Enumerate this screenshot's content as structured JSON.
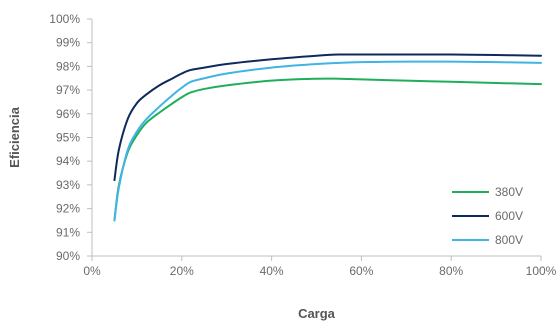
{
  "chart_data": {
    "type": "line",
    "xlabel": "Carga",
    "ylabel": "Eficiencia",
    "xlim": [
      0,
      100
    ],
    "ylim": [
      90,
      100
    ],
    "x_ticks": [
      "0%",
      "20%",
      "40%",
      "60%",
      "80%",
      "100%"
    ],
    "x_tick_values": [
      0,
      20,
      40,
      60,
      80,
      100
    ],
    "y_ticks": [
      "90%",
      "91%",
      "92%",
      "93%",
      "94%",
      "95%",
      "96%",
      "97%",
      "98%",
      "99%",
      "100%"
    ],
    "y_tick_values": [
      90,
      91,
      92,
      93,
      94,
      95,
      96,
      97,
      98,
      99,
      100
    ],
    "grid": false,
    "legend_position": "bottom-right",
    "series": [
      {
        "name": "380V",
        "color": "#1fae5a",
        "x": [
          5,
          6,
          8,
          10,
          12,
          15,
          18,
          20,
          22,
          25,
          30,
          40,
          50,
          55,
          60,
          70,
          80,
          90,
          100
        ],
        "y": [
          91.5,
          93.0,
          94.4,
          95.1,
          95.6,
          96.05,
          96.45,
          96.7,
          96.9,
          97.05,
          97.2,
          97.4,
          97.48,
          97.48,
          97.45,
          97.4,
          97.35,
          97.3,
          97.25
        ]
      },
      {
        "name": "600V",
        "color": "#0e2a5c",
        "x": [
          5,
          6,
          8,
          10,
          12,
          15,
          18,
          20,
          22,
          25,
          30,
          40,
          50,
          55,
          60,
          70,
          80,
          90,
          100
        ],
        "y": [
          93.2,
          94.5,
          95.8,
          96.45,
          96.8,
          97.2,
          97.5,
          97.7,
          97.85,
          97.95,
          98.1,
          98.3,
          98.45,
          98.5,
          98.5,
          98.5,
          98.5,
          98.48,
          98.45
        ]
      },
      {
        "name": "800V",
        "color": "#3fb4e5",
        "x": [
          5,
          6,
          8,
          10,
          12,
          15,
          18,
          20,
          22,
          25,
          30,
          40,
          50,
          55,
          60,
          70,
          80,
          90,
          100
        ],
        "y": [
          91.5,
          92.9,
          94.5,
          95.25,
          95.75,
          96.3,
          96.8,
          97.1,
          97.35,
          97.5,
          97.7,
          97.95,
          98.1,
          98.15,
          98.18,
          98.2,
          98.2,
          98.18,
          98.15
        ]
      }
    ]
  }
}
